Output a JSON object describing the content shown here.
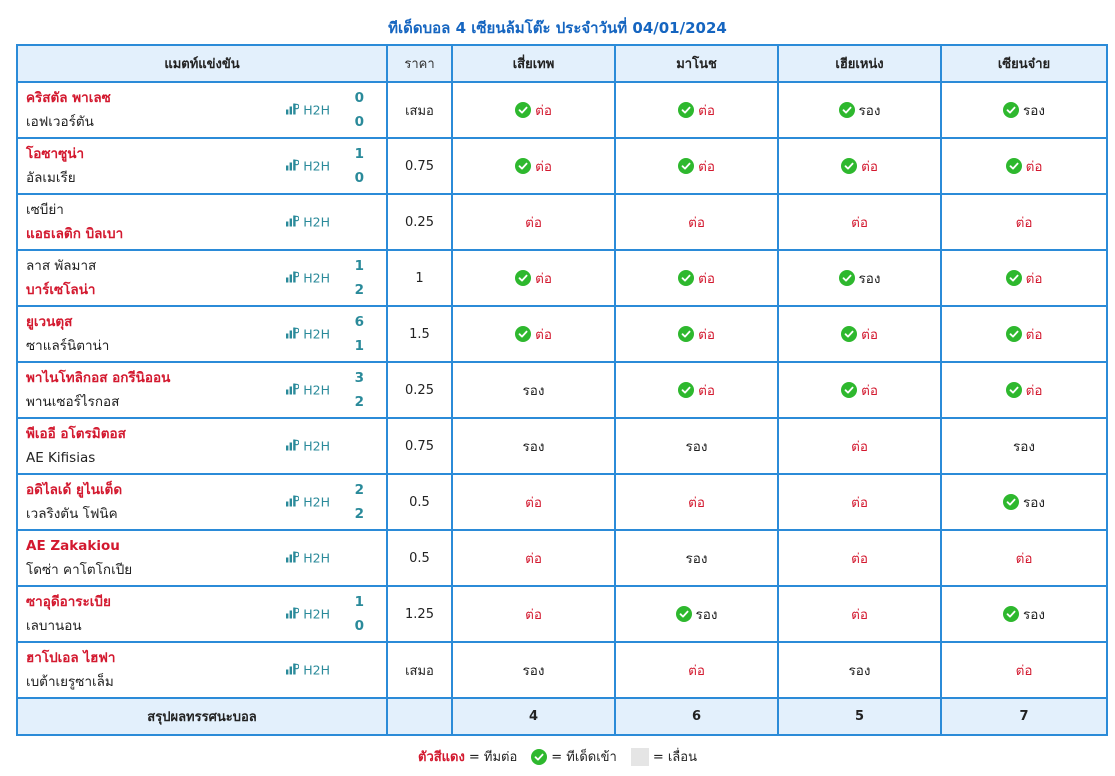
{
  "title": "ทีเด็ดบอล 4 เซียนล้มโต๊ะ ประจำวันที่ 04/01/2024",
  "headers": {
    "match": "แมตท์แข่งขัน",
    "price": "ราคา",
    "tipsters": [
      "เสี่ยเทพ",
      "มาโนช",
      "เฮียเหน่ง",
      "เซียนจ๋าย"
    ]
  },
  "h2h_label": "H2H",
  "rows": [
    {
      "home": "คริสตัล พาเลซ",
      "away": "เอฟเวอร์ตัน",
      "home_fav": true,
      "away_fav": false,
      "score_home": "0",
      "score_away": "0",
      "price": "เสมอ",
      "picks": [
        {
          "label": "ต่อ",
          "red": true,
          "win": true
        },
        {
          "label": "ต่อ",
          "red": true,
          "win": true
        },
        {
          "label": "รอง",
          "red": false,
          "win": true
        },
        {
          "label": "รอง",
          "red": false,
          "win": true
        }
      ]
    },
    {
      "home": "โอซาซูน่า",
      "away": "อัลเมเรีย",
      "home_fav": true,
      "away_fav": false,
      "score_home": "1",
      "score_away": "0",
      "price": "0.75",
      "picks": [
        {
          "label": "ต่อ",
          "red": true,
          "win": true
        },
        {
          "label": "ต่อ",
          "red": true,
          "win": true
        },
        {
          "label": "ต่อ",
          "red": true,
          "win": true
        },
        {
          "label": "ต่อ",
          "red": true,
          "win": true
        }
      ]
    },
    {
      "home": "เซบีย่า",
      "away": "แอธเลติก บิลเบา",
      "home_fav": false,
      "away_fav": true,
      "score_home": "",
      "score_away": "",
      "price": "0.25",
      "picks": [
        {
          "label": "ต่อ",
          "red": true,
          "win": false
        },
        {
          "label": "ต่อ",
          "red": true,
          "win": false
        },
        {
          "label": "ต่อ",
          "red": true,
          "win": false
        },
        {
          "label": "ต่อ",
          "red": true,
          "win": false
        }
      ]
    },
    {
      "home": "ลาส พัลมาส",
      "away": "บาร์เซโลน่า",
      "home_fav": false,
      "away_fav": true,
      "score_home": "1",
      "score_away": "2",
      "price": "1",
      "picks": [
        {
          "label": "ต่อ",
          "red": true,
          "win": true
        },
        {
          "label": "ต่อ",
          "red": true,
          "win": true
        },
        {
          "label": "รอง",
          "red": false,
          "win": true
        },
        {
          "label": "ต่อ",
          "red": true,
          "win": true
        }
      ]
    },
    {
      "home": "ยูเวนตุส",
      "away": "ซาแลร์นิตาน่า",
      "home_fav": true,
      "away_fav": false,
      "score_home": "6",
      "score_away": "1",
      "price": "1.5",
      "picks": [
        {
          "label": "ต่อ",
          "red": true,
          "win": true
        },
        {
          "label": "ต่อ",
          "red": true,
          "win": true
        },
        {
          "label": "ต่อ",
          "red": true,
          "win": true
        },
        {
          "label": "ต่อ",
          "red": true,
          "win": true
        }
      ]
    },
    {
      "home": "พาไนโทลิกอส อกรีนิออน",
      "away": "พานเซอร์ไรกอส",
      "home_fav": true,
      "away_fav": false,
      "score_home": "3",
      "score_away": "2",
      "price": "0.25",
      "picks": [
        {
          "label": "รอง",
          "red": false,
          "win": false
        },
        {
          "label": "ต่อ",
          "red": true,
          "win": true
        },
        {
          "label": "ต่อ",
          "red": true,
          "win": true
        },
        {
          "label": "ต่อ",
          "red": true,
          "win": true
        }
      ]
    },
    {
      "home": "พีเออี อโตรมิตอส",
      "away": "AE Kifisias",
      "home_fav": true,
      "away_fav": false,
      "score_home": "",
      "score_away": "",
      "price": "0.75",
      "picks": [
        {
          "label": "รอง",
          "red": false,
          "win": false
        },
        {
          "label": "รอง",
          "red": false,
          "win": false
        },
        {
          "label": "ต่อ",
          "red": true,
          "win": false
        },
        {
          "label": "รอง",
          "red": false,
          "win": false
        }
      ]
    },
    {
      "home": "อดิไลเด้ ยูไนเต็ด",
      "away": "เวลริงตัน โฟนิค",
      "home_fav": true,
      "away_fav": false,
      "score_home": "2",
      "score_away": "2",
      "price": "0.5",
      "picks": [
        {
          "label": "ต่อ",
          "red": true,
          "win": false
        },
        {
          "label": "ต่อ",
          "red": true,
          "win": false
        },
        {
          "label": "ต่อ",
          "red": true,
          "win": false
        },
        {
          "label": "รอง",
          "red": false,
          "win": true
        }
      ]
    },
    {
      "home": "AE Zakakiou",
      "away": "โดซ่า คาโตโกเปีย",
      "home_fav": true,
      "away_fav": false,
      "score_home": "",
      "score_away": "",
      "price": "0.5",
      "picks": [
        {
          "label": "ต่อ",
          "red": true,
          "win": false
        },
        {
          "label": "รอง",
          "red": false,
          "win": false
        },
        {
          "label": "ต่อ",
          "red": true,
          "win": false
        },
        {
          "label": "ต่อ",
          "red": true,
          "win": false
        }
      ]
    },
    {
      "home": "ซาอุดีอาระเบีย",
      "away": "เลบานอน",
      "home_fav": true,
      "away_fav": false,
      "score_home": "1",
      "score_away": "0",
      "price": "1.25",
      "picks": [
        {
          "label": "ต่อ",
          "red": true,
          "win": false
        },
        {
          "label": "รอง",
          "red": false,
          "win": true
        },
        {
          "label": "ต่อ",
          "red": true,
          "win": false
        },
        {
          "label": "รอง",
          "red": false,
          "win": true
        }
      ]
    },
    {
      "home": "ฮาโปเอล ไฮฟา",
      "away": "เบต้าเยรูซาเล็ม",
      "home_fav": true,
      "away_fav": false,
      "score_home": "",
      "score_away": "",
      "price": "เสมอ",
      "picks": [
        {
          "label": "รอง",
          "red": false,
          "win": false
        },
        {
          "label": "ต่อ",
          "red": true,
          "win": false
        },
        {
          "label": "รอง",
          "red": false,
          "win": false
        },
        {
          "label": "ต่อ",
          "red": true,
          "win": false
        }
      ]
    }
  ],
  "summary": {
    "label": "สรุปผลทรรศนะบอล",
    "values": [
      "4",
      "6",
      "5",
      "7"
    ]
  },
  "legend": {
    "red_word": "ตัวสีแดง",
    "red_desc": "= ทีมต่อ",
    "check_desc": "= ทีเด็ดเข้า",
    "gray_desc": "= เลื่อน"
  },
  "colors": {
    "border": "#2b8bd8",
    "header_bg": "#e3f0fc",
    "favorite_red": "#d3192f",
    "check_green": "#2eb82e",
    "title_blue": "#1565c0"
  }
}
